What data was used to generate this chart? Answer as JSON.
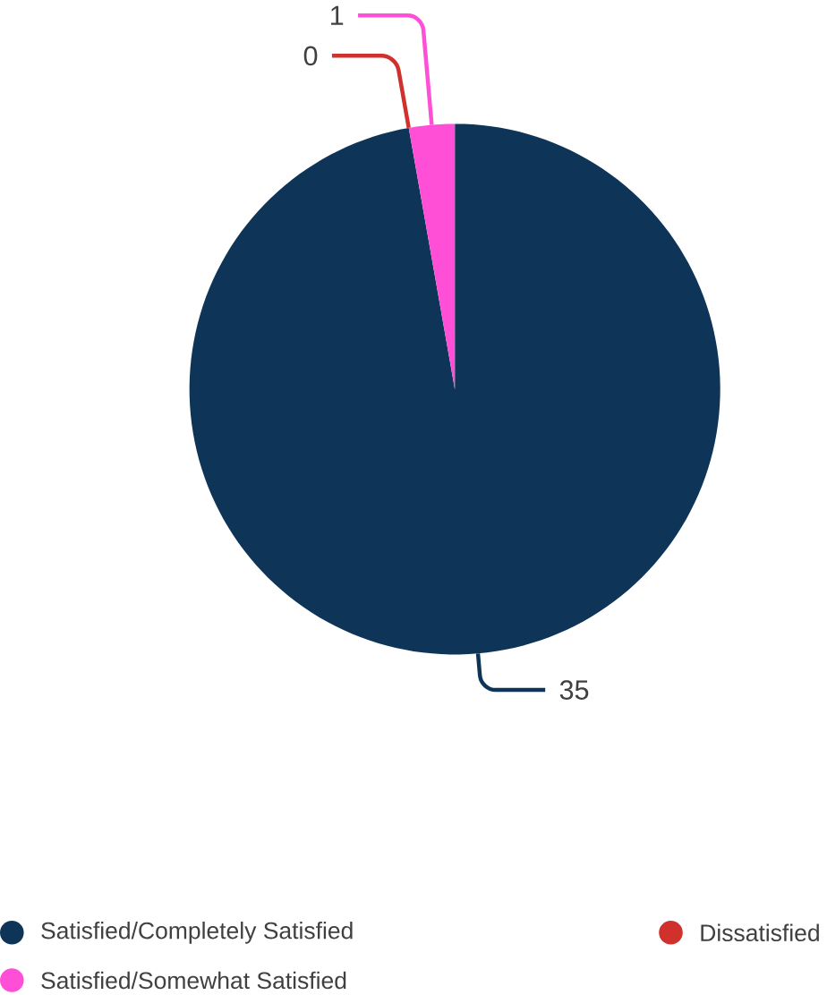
{
  "chart_data": {
    "type": "pie",
    "categories": [
      "Satisfied/Completely Satisfied",
      "Dissatisfied",
      "Satisfied/Somewhat Satisfied"
    ],
    "values": [
      35,
      0,
      1
    ],
    "colors": [
      "#0e3557",
      "#d0312d",
      "#ff4fd6"
    ],
    "value_labels": [
      "35",
      "0",
      "1"
    ],
    "legend": "bottom"
  }
}
